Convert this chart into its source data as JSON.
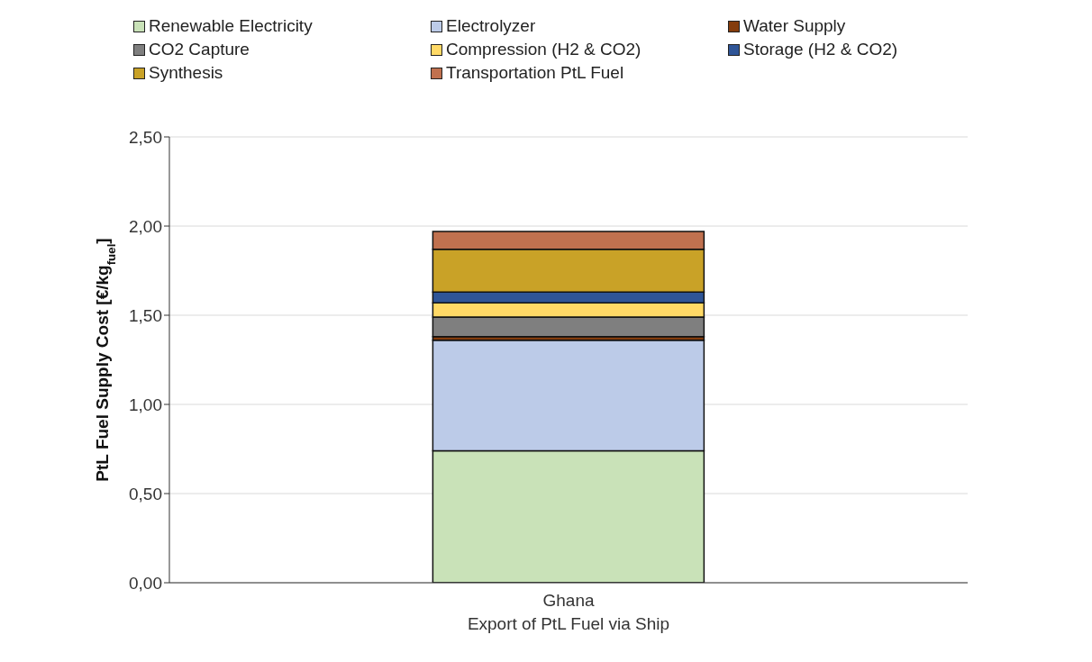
{
  "chart_data": {
    "type": "bar",
    "stacked": true,
    "categories": [
      "Ghana"
    ],
    "xlabel": "Export of PtL Fuel via Ship",
    "ylabel": "PtL Fuel Supply Cost [€/kg$_{fuel}$]",
    "ylim": [
      0,
      2.5
    ],
    "yticks": [
      {
        "value": 0,
        "label": "0,00"
      },
      {
        "value": 0.5,
        "label": "0,50"
      },
      {
        "value": 1,
        "label": "1,00"
      },
      {
        "value": 1.5,
        "label": "1,50"
      },
      {
        "value": 2,
        "label": "2,00"
      },
      {
        "value": 2.5,
        "label": "2,50"
      }
    ],
    "grid": "y",
    "legend": "top",
    "series": [
      {
        "name": "Renewable Electricity",
        "color": "#c9e2b8",
        "values": [
          0.74
        ]
      },
      {
        "name": "Electrolyzer",
        "color": "#bccbe8",
        "values": [
          0.62
        ]
      },
      {
        "name": "Water Supply",
        "color": "#843c0c",
        "values": [
          0.02
        ]
      },
      {
        "name": "CO2 Capture",
        "color": "#7f7f7f",
        "values": [
          0.11
        ]
      },
      {
        "name": "Compression (H2 & CO2)",
        "color": "#ffd966",
        "values": [
          0.08
        ]
      },
      {
        "name": "Storage (H2 & CO2)",
        "color": "#2f5597",
        "values": [
          0.06
        ]
      },
      {
        "name": "Synthesis",
        "color": "#c9a227",
        "values": [
          0.24
        ]
      },
      {
        "name": "Transportation PtL Fuel",
        "color": "#c0714f",
        "values": [
          0.1
        ]
      }
    ]
  }
}
